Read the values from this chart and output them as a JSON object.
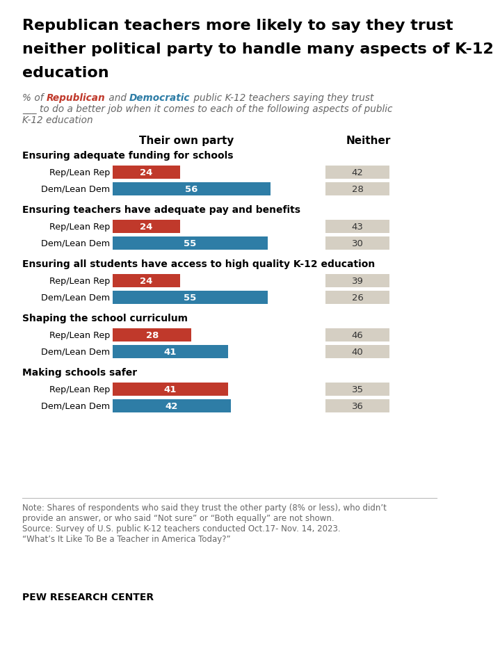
{
  "title": "Republican teachers more likely to say they trust\nneither political party to handle many aspects of K-12\neducation",
  "col_headers": [
    "Their own party",
    "Neither"
  ],
  "categories": [
    "Ensuring adequate funding for schools",
    "Ensuring teachers have adequate pay and benefits",
    "Ensuring all students have access to high quality K-12 education",
    "Shaping the school curriculum",
    "Making schools safer"
  ],
  "rep_own": [
    24,
    24,
    24,
    28,
    41
  ],
  "dem_own": [
    56,
    55,
    55,
    41,
    42
  ],
  "rep_neither": [
    42,
    43,
    39,
    46,
    35
  ],
  "dem_neither": [
    28,
    30,
    26,
    40,
    36
  ],
  "rep_color": "#c0392b",
  "dem_color": "#2e7da6",
  "neither_color": "#d5cfc3",
  "background_color": "#ffffff",
  "subtitle_normal_color": "#666666",
  "rep_text_color": "#c0392b",
  "dem_text_color": "#2e7da6",
  "note": "Note: Shares of respondents who said they trust the other party (8% or less), who didn’t provide an answer, or who said “Not sure” or “Both equally” are not shown.\nSource: Survey of U.S. public K-12 teachers conducted Oct.17- Nov. 14, 2023.\n“What’s It Like To Be a Teacher in America Today?”",
  "footer": "PEW RESEARCH CENTER"
}
